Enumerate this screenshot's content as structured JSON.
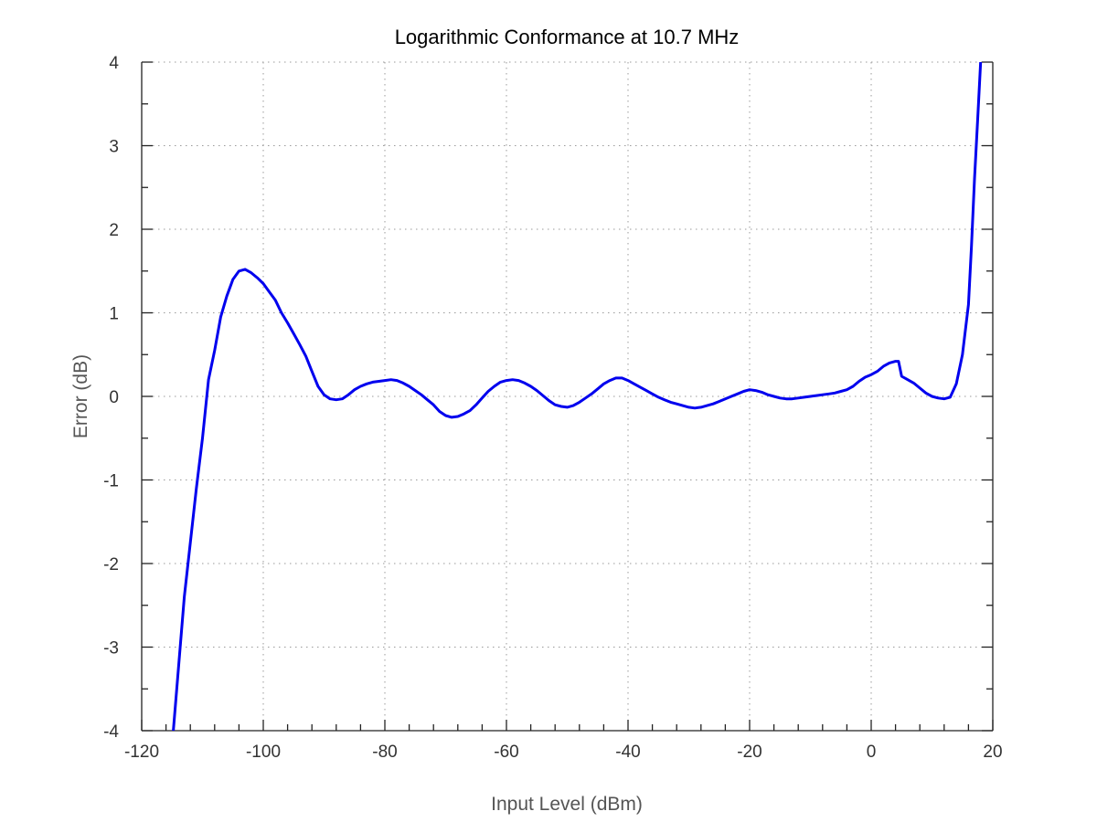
{
  "chart_data": {
    "type": "line",
    "title": "Logarithmic Conformance at 10.7 MHz",
    "xlabel": "Input Level (dBm)",
    "ylabel": "Error (dB)",
    "xlim": [
      -120,
      20
    ],
    "ylim": [
      -4,
      4
    ],
    "xticks": [
      -120,
      -100,
      -80,
      -60,
      -40,
      -20,
      0,
      20
    ],
    "yticks": [
      -4,
      -3,
      -2,
      -1,
      0,
      1,
      2,
      3,
      4
    ],
    "xtick_labels": [
      "-120",
      "-100",
      "-80",
      "-60",
      "-40",
      "-20",
      "0",
      "20"
    ],
    "ytick_labels": [
      "-4",
      "-3",
      "-2",
      "-1",
      "0",
      "1",
      "2",
      "3",
      "4"
    ],
    "grid": true,
    "series": [
      {
        "color": "#0000ee",
        "x": [
          -114.8,
          -113,
          -111,
          -110,
          -109,
          -108,
          -107,
          -106,
          -105,
          -104,
          -103,
          -102,
          -101,
          -100,
          -99,
          -98,
          -97,
          -96,
          -95,
          -94,
          -93,
          -92,
          -91,
          -90,
          -89,
          -88,
          -87,
          -86,
          -85,
          -84,
          -83,
          -82,
          -81,
          -80,
          -79,
          -78,
          -77,
          -76,
          -75,
          -74,
          -73,
          -72,
          -71,
          -70,
          -69,
          -68,
          -67,
          -66,
          -65,
          -64,
          -63,
          -62,
          -61,
          -60,
          -59,
          -58,
          -57,
          -56,
          -55,
          -54,
          -53,
          -52,
          -51,
          -50,
          -49,
          -48,
          -47,
          -46,
          -45,
          -44,
          -43,
          -42,
          -41,
          -40,
          -39,
          -38,
          -37,
          -36,
          -35,
          -34,
          -33,
          -32,
          -31,
          -30,
          -29,
          -28,
          -27,
          -26,
          -25,
          -24,
          -23,
          -22,
          -21,
          -20,
          -19,
          -18,
          -17,
          -16,
          -15,
          -14,
          -13,
          -12,
          -11,
          -10,
          -9,
          -8,
          -7,
          -6,
          -5,
          -4,
          -3,
          -2,
          -1,
          0,
          1,
          2,
          3,
          4,
          4.5,
          5,
          6,
          7,
          8,
          9,
          10,
          11,
          12,
          13,
          14,
          15,
          16,
          16.5,
          17,
          17.5,
          18,
          18.2
        ],
        "y": [
          -4,
          -2.4,
          -1.1,
          -0.5,
          0.2,
          0.55,
          0.95,
          1.2,
          1.4,
          1.5,
          1.52,
          1.48,
          1.42,
          1.35,
          1.25,
          1.15,
          1.0,
          0.88,
          0.75,
          0.62,
          0.48,
          0.3,
          0.12,
          0.02,
          -0.03,
          -0.04,
          -0.03,
          0.02,
          0.08,
          0.12,
          0.15,
          0.17,
          0.18,
          0.19,
          0.2,
          0.19,
          0.16,
          0.12,
          0.07,
          0.02,
          -0.04,
          -0.1,
          -0.18,
          -0.23,
          -0.25,
          -0.24,
          -0.21,
          -0.17,
          -0.1,
          -0.02,
          0.06,
          0.12,
          0.17,
          0.19,
          0.2,
          0.19,
          0.16,
          0.12,
          0.07,
          0.01,
          -0.05,
          -0.1,
          -0.12,
          -0.13,
          -0.11,
          -0.07,
          -0.02,
          0.03,
          0.09,
          0.15,
          0.19,
          0.22,
          0.22,
          0.19,
          0.15,
          0.11,
          0.07,
          0.03,
          -0.01,
          -0.04,
          -0.07,
          -0.09,
          -0.11,
          -0.13,
          -0.14,
          -0.13,
          -0.11,
          -0.09,
          -0.06,
          -0.03,
          0.0,
          0.03,
          0.06,
          0.08,
          0.07,
          0.05,
          0.02,
          0.0,
          -0.02,
          -0.03,
          -0.03,
          -0.02,
          -0.01,
          0.0,
          0.01,
          0.02,
          0.03,
          0.04,
          0.06,
          0.08,
          0.12,
          0.18,
          0.23,
          0.26,
          0.3,
          0.36,
          0.4,
          0.42,
          0.42,
          0.24,
          0.2,
          0.16,
          0.1,
          0.04,
          0.0,
          -0.02,
          -0.03,
          -0.01,
          0.15,
          0.5,
          1.1,
          1.8,
          2.6,
          3.3,
          4.0,
          4.2
        ]
      }
    ]
  }
}
